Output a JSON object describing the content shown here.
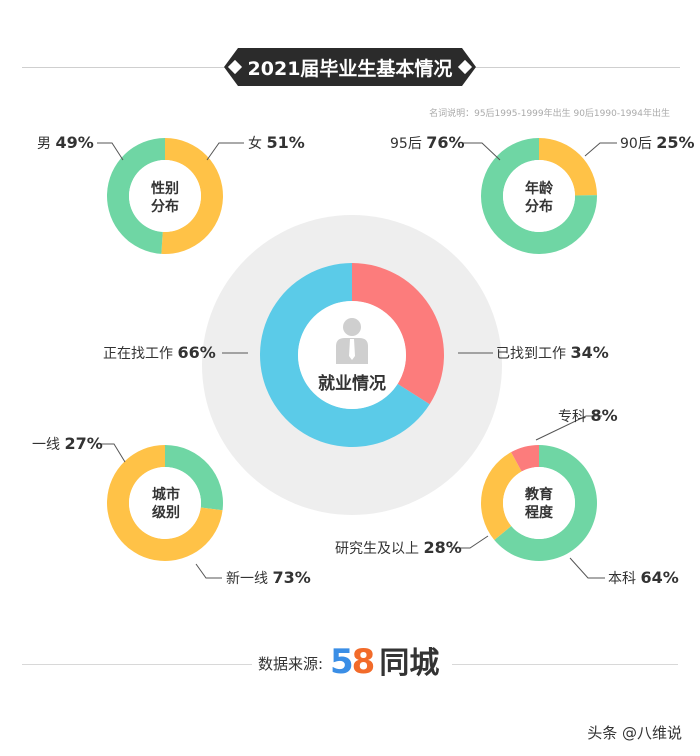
{
  "title": "2021届毕业生基本情况",
  "note": "名词说明：95后1995-1999年出生  90后1990-1994年出生",
  "colors": {
    "green": "#6FD6A4",
    "yellow": "#FFC247",
    "red": "#FC7C7C",
    "blue": "#5BCBE8",
    "gray_ring": "#eeeeee"
  },
  "chart_data": [
    {
      "type": "pie",
      "title": "性别分布",
      "center_lines": [
        "性别",
        "分布"
      ],
      "slices": [
        {
          "label": "女",
          "value": 51,
          "color": "#FFC247"
        },
        {
          "label": "男",
          "value": 49,
          "color": "#6FD6A4"
        }
      ]
    },
    {
      "type": "pie",
      "title": "年龄分布",
      "center_lines": [
        "年龄",
        "分布"
      ],
      "slices": [
        {
          "label": "90后",
          "value": 25,
          "color": "#FFC247"
        },
        {
          "label": "95后",
          "value": 76,
          "color": "#6FD6A4"
        }
      ]
    },
    {
      "type": "pie",
      "title": "就业情况",
      "center_lines": [
        "就业情况"
      ],
      "slices": [
        {
          "label": "已找到工作",
          "value": 34,
          "color": "#FC7C7C"
        },
        {
          "label": "正在找工作",
          "value": 66,
          "color": "#5BCBE8"
        }
      ]
    },
    {
      "type": "pie",
      "title": "城市级别",
      "center_lines": [
        "城市",
        "级别"
      ],
      "slices": [
        {
          "label": "一线",
          "value": 27,
          "color": "#6FD6A4"
        },
        {
          "label": "新一线",
          "value": 73,
          "color": "#FFC247"
        }
      ]
    },
    {
      "type": "pie",
      "title": "教育程度",
      "center_lines": [
        "教育",
        "程度"
      ],
      "slices": [
        {
          "label": "本科",
          "value": 64,
          "color": "#6FD6A4"
        },
        {
          "label": "研究生及以上",
          "value": 28,
          "color": "#FFC247"
        },
        {
          "label": "专科",
          "value": 8,
          "color": "#FC7C7C"
        }
      ]
    }
  ],
  "labels": {
    "female": {
      "name": "女",
      "value": "51%"
    },
    "male": {
      "name": "男",
      "value": "49%"
    },
    "post90": {
      "name": "90后",
      "value": "25%"
    },
    "post95": {
      "name": "95后",
      "value": "76%"
    },
    "found": {
      "name": "已找到工作",
      "value": "34%"
    },
    "seeking": {
      "name": "正在找工作",
      "value": "66%"
    },
    "tier1": {
      "name": "一线",
      "value": "27%"
    },
    "newtier1": {
      "name": "新一线",
      "value": "73%"
    },
    "junior": {
      "name": "专科",
      "value": "8%"
    },
    "bachelor": {
      "name": "本科",
      "value": "64%"
    },
    "graduate": {
      "name": "研究生及以上",
      "value": "28%"
    }
  },
  "source": {
    "label": "数据来源:",
    "logo_num_a": "5",
    "logo_num_b": "8",
    "logo_text": "同城"
  },
  "watermark": "头条 @八维说"
}
